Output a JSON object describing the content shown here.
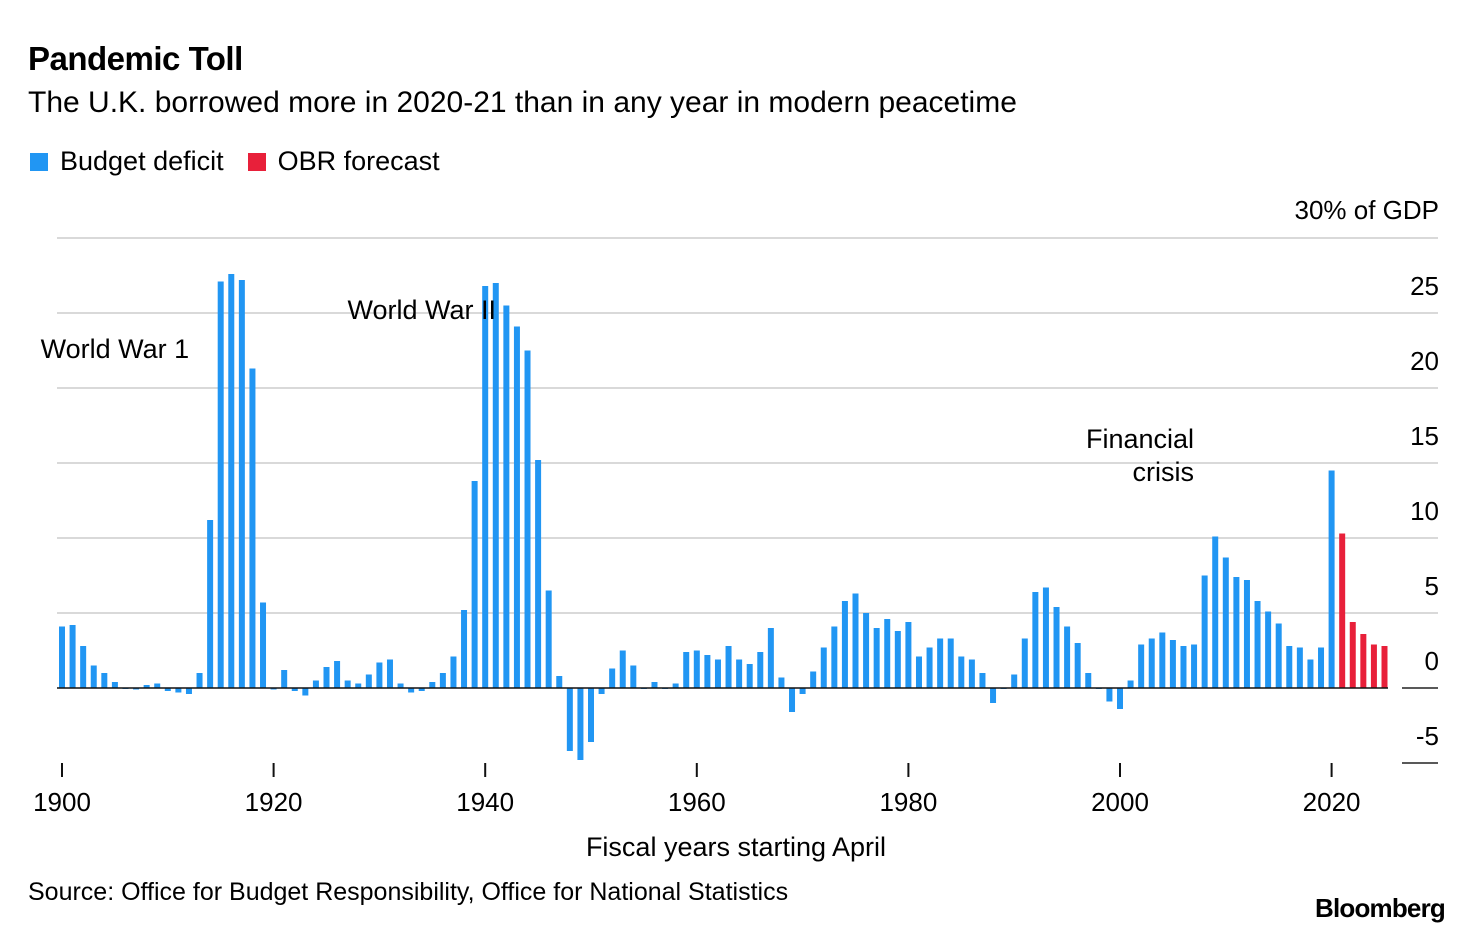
{
  "title": "Pandemic Toll",
  "subtitle": "The U.K. borrowed more in 2020-21 than in any year in modern peacetime",
  "legend": [
    {
      "label": "Budget deficit",
      "color": "#2196F3"
    },
    {
      "label": "OBR forecast",
      "color": "#E8203A"
    }
  ],
  "source": "Source: Office for Budget Responsibility, Office for National Statistics",
  "logo": "Bloomberg",
  "chart_data": {
    "type": "bar",
    "xlabel": "Fiscal years starting April",
    "ylabel": "30% of GDP",
    "ylim": [
      -5,
      30
    ],
    "yticks": [
      -5,
      0,
      5,
      10,
      15,
      20,
      25
    ],
    "ytick_labels": [
      "-5",
      "0",
      "5",
      "10",
      "15",
      "20",
      "25"
    ],
    "top_label": "30% of GDP",
    "xticks": [
      1900,
      1920,
      1940,
      1960,
      1980,
      2000,
      2020
    ],
    "annotations": [
      {
        "text": "World War 1",
        "x": 1905,
        "y": 22,
        "anchor": "middle"
      },
      {
        "text": "World War II",
        "x": 1934,
        "y": 24.6,
        "anchor": "middle"
      },
      {
        "text": "Financial crisis",
        "lines": [
          "Financial",
          "crisis"
        ],
        "x": 2007,
        "y": 16,
        "anchor": "end"
      }
    ],
    "series": [
      {
        "name": "Budget deficit",
        "color": "#2196F3",
        "start_year": 1900,
        "values": [
          4.1,
          4.2,
          2.8,
          1.5,
          1.0,
          0.4,
          0.0,
          -0.1,
          0.2,
          0.3,
          -0.2,
          -0.3,
          -0.4,
          1.0,
          11.2,
          27.1,
          27.6,
          27.2,
          21.3,
          5.7,
          -0.1,
          1.2,
          -0.2,
          -0.5,
          0.5,
          1.4,
          1.8,
          0.5,
          0.3,
          0.9,
          1.7,
          1.9,
          0.3,
          -0.3,
          -0.2,
          0.4,
          1.0,
          2.1,
          5.2,
          13.8,
          26.8,
          27.0,
          25.5,
          24.1,
          22.5,
          15.2,
          6.5,
          0.8,
          -4.2,
          -4.8,
          -3.6,
          -0.4,
          1.3,
          2.5,
          1.5,
          0.0,
          0.4,
          0.0,
          0.3,
          2.4,
          2.5,
          2.2,
          1.9,
          2.8,
          1.9,
          1.6,
          2.4,
          4.0,
          0.7,
          -1.6,
          -0.4,
          1.1,
          2.7,
          4.1,
          5.8,
          6.3,
          5.0,
          4.0,
          4.6,
          3.8,
          4.4,
          2.1,
          2.7,
          3.3,
          3.3,
          2.1,
          1.9,
          1.0,
          -1.0,
          0.0,
          0.9,
          3.3,
          6.4,
          6.7,
          5.4,
          4.1,
          3.0,
          1.0,
          0.0,
          -0.9,
          -1.4,
          0.5,
          2.9,
          3.3,
          3.7,
          3.2,
          2.8,
          2.9,
          7.5,
          10.1,
          8.7,
          7.4,
          7.2,
          5.8,
          5.1,
          4.3,
          2.8,
          2.7,
          1.9,
          2.7,
          14.5
        ]
      },
      {
        "name": "OBR forecast",
        "color": "#E8203A",
        "start_year": 2021,
        "values": [
          10.3,
          4.4,
          3.6,
          2.9,
          2.8
        ]
      }
    ]
  }
}
